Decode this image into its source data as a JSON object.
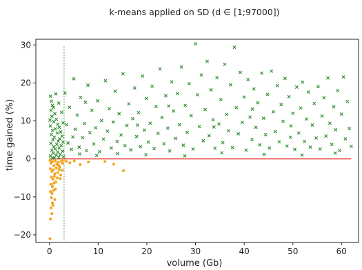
{
  "chart_data": {
    "type": "scatter",
    "title": "k-means applied on SD (d ∈ [1;97000])",
    "xlabel": "volume (Gb)",
    "ylabel": "time gained (%)",
    "xlim": [
      -2.8,
      63.5
    ],
    "ylim": [
      -22,
      31.5
    ],
    "xticks": [
      0,
      10,
      20,
      30,
      40,
      50,
      60
    ],
    "yticks": [
      -20,
      -10,
      0,
      10,
      20,
      30
    ],
    "grid": false,
    "legend": false,
    "zero_line": {
      "y": 0,
      "x_range": [
        0,
        62
      ],
      "color": "#e8413c"
    },
    "threshold_line": {
      "x": 3,
      "y_range": [
        -21.5,
        30
      ],
      "color": "#43a047",
      "style": "dashed"
    },
    "series": [
      {
        "marker": "x",
        "color": "#2a8a2a",
        "points": [
          [
            0.2,
            16.5
          ],
          [
            0.4,
            15.2
          ],
          [
            0.6,
            14.1
          ],
          [
            0.3,
            12.8
          ],
          [
            0.8,
            13.5
          ],
          [
            1.1,
            11.9
          ],
          [
            0.5,
            11.2
          ],
          [
            1.4,
            10.4
          ],
          [
            0.9,
            9.8
          ],
          [
            1.7,
            9.1
          ],
          [
            0.2,
            8.7
          ],
          [
            2.0,
            8.3
          ],
          [
            1.2,
            7.9
          ],
          [
            0.6,
            7.5
          ],
          [
            2.3,
            7.1
          ],
          [
            1.6,
            6.8
          ],
          [
            0.4,
            6.4
          ],
          [
            2.6,
            6.0
          ],
          [
            1.0,
            5.7
          ],
          [
            2.1,
            5.3
          ],
          [
            0.7,
            5.0
          ],
          [
            1.8,
            4.7
          ],
          [
            2.8,
            4.4
          ],
          [
            0.3,
            4.1
          ],
          [
            1.5,
            3.8
          ],
          [
            2.4,
            3.5
          ],
          [
            0.9,
            3.2
          ],
          [
            2.0,
            2.9
          ],
          [
            1.2,
            2.6
          ],
          [
            0.5,
            2.3
          ],
          [
            2.7,
            2.0
          ],
          [
            1.7,
            1.8
          ],
          [
            0.8,
            1.5
          ],
          [
            2.2,
            1.2
          ],
          [
            1.4,
            1.0
          ],
          [
            0.2,
            0.8
          ],
          [
            2.9,
            0.6
          ],
          [
            1.9,
            0.4
          ],
          [
            1.0,
            0.3
          ],
          [
            0.6,
            0.2
          ],
          [
            1.3,
            17.1
          ],
          [
            2.5,
            12.3
          ],
          [
            1.9,
            14.7
          ],
          [
            0.1,
            10.2
          ],
          [
            2.8,
            9.5
          ],
          [
            3.2,
            17.3
          ],
          [
            3.5,
            9.0
          ],
          [
            3.8,
            4.2
          ],
          [
            4.1,
            13.6
          ],
          [
            4.5,
            2.5
          ],
          [
            5.0,
            21.1
          ],
          [
            5.3,
            7.8
          ],
          [
            5.7,
            11.5
          ],
          [
            6.1,
            3.1
          ],
          [
            6.4,
            16.2
          ],
          [
            6.8,
            5.6
          ],
          [
            7.2,
            9.3
          ],
          [
            7.6,
            2.2
          ],
          [
            7.9,
            19.4
          ],
          [
            8.3,
            6.9
          ],
          [
            8.7,
            12.8
          ],
          [
            9.1,
            3.9
          ],
          [
            9.5,
            8.2
          ],
          [
            9.9,
            15.3
          ],
          [
            10.3,
            1.9
          ],
          [
            10.7,
            10.1
          ],
          [
            11.1,
            5.2
          ],
          [
            11.5,
            20.6
          ],
          [
            11.9,
            7.3
          ],
          [
            12.3,
            13.2
          ],
          [
            12.7,
            2.9
          ],
          [
            13.1,
            9.7
          ],
          [
            13.5,
            17.8
          ],
          [
            13.9,
            4.6
          ],
          [
            14.3,
            11.9
          ],
          [
            14.7,
            6.3
          ],
          [
            15.1,
            22.4
          ],
          [
            15.5,
            3.5
          ],
          [
            15.9,
            8.8
          ],
          [
            16.3,
            14.5
          ],
          [
            16.7,
            2.4
          ],
          [
            17.1,
            10.6
          ],
          [
            17.5,
            18.7
          ],
          [
            17.9,
            5.9
          ],
          [
            18.3,
            12.2
          ],
          [
            18.7,
            3.2
          ],
          [
            19.1,
            21.8
          ],
          [
            19.5,
            7.6
          ],
          [
            19.9,
            15.9
          ],
          [
            20.3,
            4.4
          ],
          [
            20.7,
            9.4
          ],
          [
            21.1,
            19.1
          ],
          [
            21.5,
            2.7
          ],
          [
            21.9,
            13.8
          ],
          [
            22.3,
            6.7
          ],
          [
            22.7,
            23.7
          ],
          [
            23.1,
            10.9
          ],
          [
            23.5,
            4.0
          ],
          [
            23.9,
            16.6
          ],
          [
            24.3,
            8.1
          ],
          [
            24.7,
            2.1
          ],
          [
            25.1,
            20.3
          ],
          [
            25.5,
            12.6
          ],
          [
            25.9,
            5.4
          ],
          [
            26.3,
            17.2
          ],
          [
            26.7,
            9.0
          ],
          [
            27.1,
            24.2
          ],
          [
            27.5,
            3.6
          ],
          [
            27.9,
            14.1
          ],
          [
            28.3,
            7.0
          ],
          [
            28.7,
            19.8
          ],
          [
            29.1,
            11.4
          ],
          [
            29.5,
            2.6
          ],
          [
            30.0,
            30.3
          ],
          [
            30.4,
            16.9
          ],
          [
            30.8,
            8.5
          ],
          [
            31.2,
            22.1
          ],
          [
            31.6,
            4.8
          ],
          [
            32.0,
            13.0
          ],
          [
            32.4,
            25.7
          ],
          [
            32.8,
            6.1
          ],
          [
            33.2,
            18.2
          ],
          [
            33.6,
            10.3
          ],
          [
            34.0,
            2.8
          ],
          [
            34.4,
            21.4
          ],
          [
            34.8,
            9.2
          ],
          [
            35.2,
            15.6
          ],
          [
            35.6,
            4.3
          ],
          [
            36.0,
            24.9
          ],
          [
            36.4,
            11.7
          ],
          [
            36.8,
            7.4
          ],
          [
            37.2,
            19.5
          ],
          [
            37.6,
            3.0
          ],
          [
            38.0,
            29.4
          ],
          [
            38.4,
            13.5
          ],
          [
            38.8,
            6.6
          ],
          [
            39.2,
            22.8
          ],
          [
            39.6,
            9.6
          ],
          [
            40.0,
            16.3
          ],
          [
            40.4,
            2.3
          ],
          [
            40.8,
            20.9
          ],
          [
            41.2,
            11.0
          ],
          [
            41.6,
            5.1
          ],
          [
            42.0,
            18.4
          ],
          [
            42.4,
            8.3
          ],
          [
            42.8,
            14.8
          ],
          [
            43.2,
            3.7
          ],
          [
            43.6,
            22.6
          ],
          [
            44.0,
            10.7
          ],
          [
            44.4,
            6.4
          ],
          [
            44.8,
            17.0
          ],
          [
            45.2,
            2.9
          ],
          [
            45.6,
            23.1
          ],
          [
            46.0,
            12.4
          ],
          [
            46.4,
            7.2
          ],
          [
            46.8,
            19.3
          ],
          [
            47.2,
            4.5
          ],
          [
            47.6,
            14.3
          ],
          [
            48.0,
            9.9
          ],
          [
            48.4,
            21.2
          ],
          [
            48.8,
            3.4
          ],
          [
            49.2,
            16.4
          ],
          [
            49.6,
            8.7
          ],
          [
            50.0,
            12.0
          ],
          [
            50.4,
            2.5
          ],
          [
            50.8,
            18.9
          ],
          [
            51.2,
            6.8
          ],
          [
            51.6,
            13.4
          ],
          [
            52.0,
            20.2
          ],
          [
            52.4,
            4.6
          ],
          [
            52.8,
            10.5
          ],
          [
            53.2,
            17.6
          ],
          [
            53.6,
            3.1
          ],
          [
            54.0,
            8.9
          ],
          [
            54.4,
            14.6
          ],
          [
            54.8,
            5.5
          ],
          [
            55.2,
            19.0
          ],
          [
            55.6,
            2.6
          ],
          [
            56.0,
            11.3
          ],
          [
            56.4,
            16.1
          ],
          [
            56.8,
            6.0
          ],
          [
            57.2,
            21.3
          ],
          [
            57.6,
            9.4
          ],
          [
            58.0,
            3.8
          ],
          [
            58.4,
            13.7
          ],
          [
            58.8,
            7.7
          ],
          [
            59.2,
            18.0
          ],
          [
            59.6,
            2.2
          ],
          [
            60.0,
            11.8
          ],
          [
            60.4,
            21.6
          ],
          [
            60.8,
            5.3
          ],
          [
            61.2,
            15.1
          ],
          [
            61.6,
            8.0
          ],
          [
            62.0,
            3.3
          ],
          [
            6.2,
            1.3
          ],
          [
            9.7,
            0.9
          ],
          [
            14.0,
            1.4
          ],
          [
            19.8,
            1.1
          ],
          [
            27.8,
            0.8
          ],
          [
            35.4,
            1.6
          ],
          [
            44.1,
            1.2
          ],
          [
            51.9,
            1.0
          ],
          [
            58.7,
            1.5
          ],
          [
            4.8,
            5.8
          ],
          [
            7.4,
            14.9
          ],
          [
            18.1,
            8.9
          ],
          [
            24.5,
            13.9
          ],
          [
            33.8,
            8.4
          ],
          [
            41.7,
            13.1
          ],
          [
            49.5,
            5.7
          ]
        ]
      },
      {
        "marker": "o",
        "color": "#f5a21e",
        "points": [
          [
            0.1,
            -0.4
          ],
          [
            0.3,
            -1.1
          ],
          [
            0.6,
            -0.7
          ],
          [
            0.9,
            -1.8
          ],
          [
            1.2,
            -0.5
          ],
          [
            1.5,
            -1.4
          ],
          [
            1.8,
            -0.9
          ],
          [
            2.1,
            -2.2
          ],
          [
            2.4,
            -0.6
          ],
          [
            2.7,
            -1.2
          ],
          [
            0.2,
            -2.6
          ],
          [
            0.5,
            -3.3
          ],
          [
            0.8,
            -2.9
          ],
          [
            1.1,
            -3.9
          ],
          [
            1.4,
            -2.4
          ],
          [
            1.7,
            -3.6
          ],
          [
            2.0,
            -2.8
          ],
          [
            2.3,
            -4.3
          ],
          [
            0.4,
            -4.8
          ],
          [
            0.7,
            -5.4
          ],
          [
            1.0,
            -4.6
          ],
          [
            1.3,
            -6.1
          ],
          [
            1.6,
            -5.0
          ],
          [
            0.3,
            -6.7
          ],
          [
            0.6,
            -7.3
          ],
          [
            0.9,
            -6.4
          ],
          [
            1.2,
            -8.0
          ],
          [
            0.2,
            -8.6
          ],
          [
            0.5,
            -9.1
          ],
          [
            0.8,
            -8.3
          ],
          [
            0.4,
            -10.2
          ],
          [
            0.6,
            -11.6
          ],
          [
            0.3,
            -12.9
          ],
          [
            0.5,
            -14.4
          ],
          [
            0.2,
            -15.8
          ],
          [
            0.1,
            -21.0
          ],
          [
            1.9,
            -1.7
          ],
          [
            2.6,
            -3.0
          ],
          [
            2.9,
            -0.3
          ],
          [
            2.2,
            -5.2
          ],
          [
            1.1,
            -10.7
          ],
          [
            0.7,
            -12.2
          ],
          [
            3.5,
            -0.6
          ],
          [
            4.2,
            -1.0
          ],
          [
            5.1,
            -0.5
          ],
          [
            6.3,
            -1.5
          ],
          [
            8.0,
            -0.8
          ],
          [
            11.4,
            -0.7
          ],
          [
            13.2,
            -1.4
          ],
          [
            15.2,
            -3.1
          ]
        ]
      }
    ]
  }
}
